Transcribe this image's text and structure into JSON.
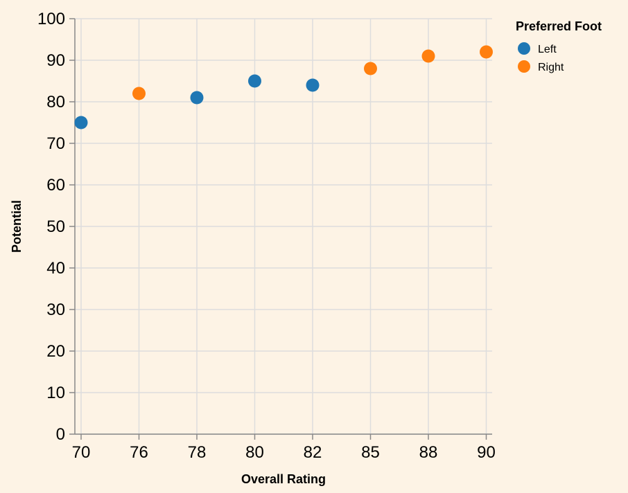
{
  "colors": {
    "background": "#fdf3e5",
    "left": "#1f77b4",
    "right": "#ff7f0e",
    "grid": "#dddddd",
    "axis": "#888888"
  },
  "chart_data": {
    "type": "scatter",
    "title": "",
    "xlabel": "Overall Rating",
    "ylabel": "Potential",
    "x_type": "ordinal",
    "x_categories": [
      "70",
      "76",
      "78",
      "80",
      "82",
      "85",
      "88",
      "90"
    ],
    "ylim": [
      0,
      100
    ],
    "y_ticks": [
      0,
      10,
      20,
      30,
      40,
      50,
      60,
      70,
      80,
      90,
      100
    ],
    "grid": true,
    "legend": {
      "title": "Preferred Foot",
      "placement": "top-right",
      "entries": [
        "Left",
        "Right"
      ]
    },
    "series": [
      {
        "name": "Left",
        "points": [
          {
            "x": "70",
            "y": 75
          },
          {
            "x": "78",
            "y": 81
          },
          {
            "x": "80",
            "y": 85
          },
          {
            "x": "82",
            "y": 84
          }
        ]
      },
      {
        "name": "Right",
        "points": [
          {
            "x": "76",
            "y": 82
          },
          {
            "x": "85",
            "y": 88
          },
          {
            "x": "88",
            "y": 91
          },
          {
            "x": "90",
            "y": 92
          }
        ]
      }
    ]
  }
}
